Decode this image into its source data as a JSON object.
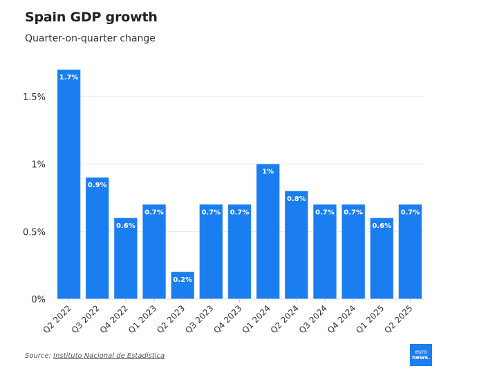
{
  "header": {
    "title": "Spain GDP growth",
    "subtitle": "Quarter-on-quarter change"
  },
  "footer": {
    "source_prefix": "Source: ",
    "source_link": "Instituto Nacional de Estadística",
    "logo_line1": "euro",
    "logo_line2": "news."
  },
  "colors": {
    "bar": "#1a7ef0",
    "grid": "#e6e6e6",
    "label": "#ffffff"
  },
  "chart_data": {
    "type": "bar",
    "title": "Spain GDP growth",
    "subtitle": "Quarter-on-quarter change",
    "xlabel": "",
    "ylabel": "",
    "categories": [
      "Q2 2022",
      "Q3 2022",
      "Q4 2022",
      "Q1 2023",
      "Q2 2023",
      "Q3 2023",
      "Q4 2023",
      "Q1 2024",
      "Q2 2024",
      "Q3 2024",
      "Q4 2024",
      "Q1 2025",
      "Q2 2025"
    ],
    "values": [
      1.7,
      0.9,
      0.6,
      0.7,
      0.2,
      0.7,
      0.7,
      1.0,
      0.8,
      0.7,
      0.7,
      0.6,
      0.7
    ],
    "data_labels": [
      "1.7%",
      "0.9%",
      "0.6%",
      "0.7%",
      "0.2%",
      "0.7%",
      "0.7%",
      "1%",
      "0.8%",
      "0.7%",
      "0.7%",
      "0.6%",
      "0.7%"
    ],
    "yticks": [
      0,
      0.5,
      1,
      1.5
    ],
    "ytick_labels": [
      "0%",
      "0.5%",
      "1%",
      "1.5%"
    ],
    "ylim": [
      0,
      1.7
    ],
    "grid": true,
    "legend": "none"
  }
}
